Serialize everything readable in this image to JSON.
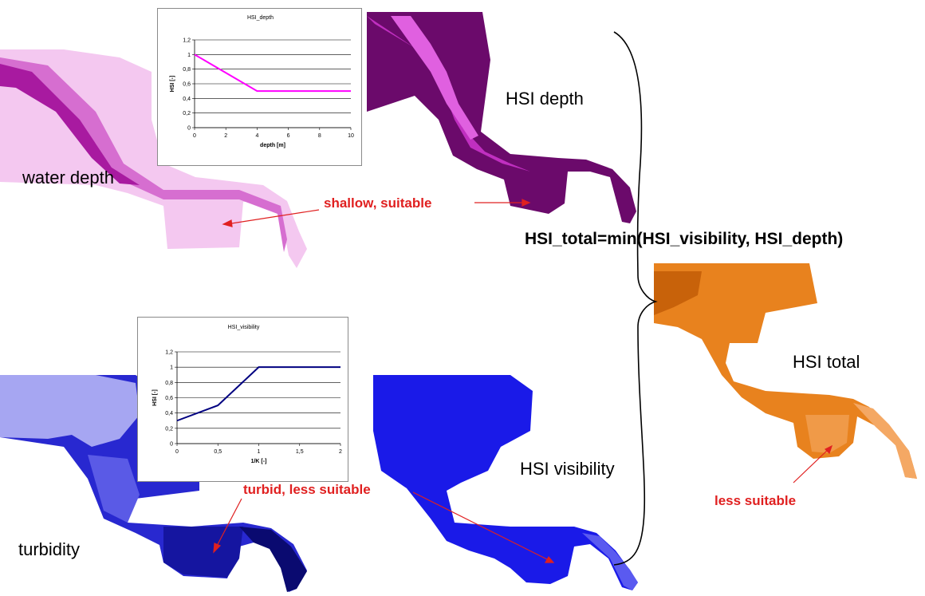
{
  "labels": {
    "water_depth": "water depth",
    "hsi_depth": "HSI depth",
    "turbidity": "turbidity",
    "hsi_visibility": "HSI visibility",
    "hsi_total": "HSI total",
    "formula": "HSI_total=min(HSI_visibility, HSI_depth)",
    "shallow_suitable": "shallow, suitable",
    "turbid_less_suitable": "turbid, less suitable",
    "less_suitable": "less suitable"
  },
  "colors": {
    "water_depth_map": "#f2c2ee",
    "hsi_depth_map": "#6b0a6b",
    "turbidity_map": "#2a2ad8",
    "hsi_visibility_map": "#1a1ae8",
    "hsi_total_map": "#e8821e",
    "annotation": "#e02020",
    "depth_curve": "#ff00ff",
    "visibility_curve": "#000080"
  },
  "chart_data": [
    {
      "type": "line",
      "title": "HSI_depth",
      "xlabel": "depth [m]",
      "ylabel": "HSI [-]",
      "xlim": [
        0,
        10
      ],
      "ylim": [
        0,
        1.2
      ],
      "x_ticks": [
        "0",
        "2",
        "4",
        "6",
        "8",
        "10"
      ],
      "y_ticks": [
        "0",
        "0,2",
        "0,4",
        "0,6",
        "0,8",
        "1",
        "1,2"
      ],
      "grid": true,
      "series": [
        {
          "x": [
            0,
            4,
            10
          ],
          "y": [
            1,
            0.5,
            0.5
          ],
          "color": "#ff00ff"
        }
      ]
    },
    {
      "type": "line",
      "title": "HSI_visibility",
      "xlabel": "1/K [-]",
      "ylabel": "HSI [-]",
      "xlim": [
        0,
        2
      ],
      "ylim": [
        0,
        1.2
      ],
      "x_ticks": [
        "0",
        "0,5",
        "1",
        "1,5",
        "2"
      ],
      "y_ticks": [
        "0",
        "0,2",
        "0,4",
        "0,6",
        "0,8",
        "1",
        "1,2"
      ],
      "grid": true,
      "series": [
        {
          "x": [
            0,
            0.5,
            1,
            2
          ],
          "y": [
            0.3,
            0.5,
            1,
            1
          ],
          "color": "#000080"
        }
      ]
    }
  ]
}
